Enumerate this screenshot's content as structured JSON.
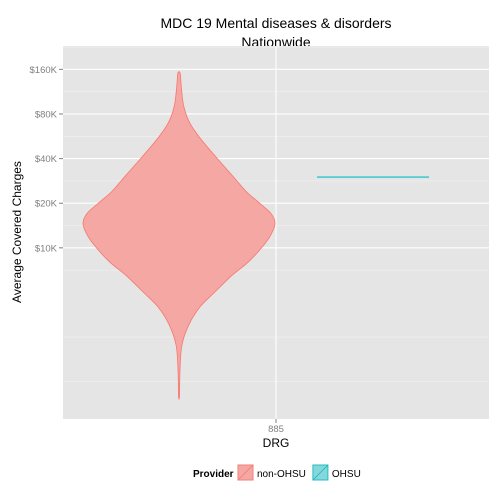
{
  "chart_data": {
    "type": "violin",
    "title": "MDC 19 Mental diseases & disorders",
    "subtitle": "Nationwide",
    "xlabel": "DRG",
    "ylabel": "Average Covered Charges",
    "categories": [
      "885"
    ],
    "y_scale": "log",
    "ylim": [
      700,
      230000
    ],
    "y_ticks": [
      {
        "value": 10000,
        "label": "$10K"
      },
      {
        "value": 20000,
        "label": "$20K"
      },
      {
        "value": 40000,
        "label": "$40K"
      },
      {
        "value": 80000,
        "label": "$80K"
      },
      {
        "value": 160000,
        "label": "$160K"
      }
    ],
    "series": [
      {
        "name": "non-OHSU",
        "type": "violin",
        "category": "885",
        "fill_color": "#f4a7a3",
        "line_color": "#f8766d",
        "min": 1000,
        "max": 150000,
        "mode": 15000,
        "density_profile": [
          {
            "y": 1000,
            "w": 0.005
          },
          {
            "y": 1500,
            "w": 0.01
          },
          {
            "y": 2200,
            "w": 0.03
          },
          {
            "y": 3000,
            "w": 0.1
          },
          {
            "y": 4000,
            "w": 0.22
          },
          {
            "y": 5000,
            "w": 0.37
          },
          {
            "y": 6500,
            "w": 0.55
          },
          {
            "y": 8000,
            "w": 0.72
          },
          {
            "y": 10000,
            "w": 0.86
          },
          {
            "y": 12000,
            "w": 0.95
          },
          {
            "y": 14500,
            "w": 1.0
          },
          {
            "y": 17000,
            "w": 0.96
          },
          {
            "y": 20000,
            "w": 0.84
          },
          {
            "y": 24000,
            "w": 0.7
          },
          {
            "y": 30000,
            "w": 0.57
          },
          {
            "y": 40000,
            "w": 0.4
          },
          {
            "y": 55000,
            "w": 0.22
          },
          {
            "y": 70000,
            "w": 0.11
          },
          {
            "y": 90000,
            "w": 0.05
          },
          {
            "y": 120000,
            "w": 0.025
          },
          {
            "y": 150000,
            "w": 0.012
          }
        ]
      },
      {
        "name": "OHSU",
        "type": "violin",
        "category": "885",
        "fill_color": "#86d6da",
        "line_color": "#00bfc4",
        "value": 30000
      }
    ],
    "legend": {
      "title": "Provider",
      "position": "bottom",
      "items": [
        {
          "label": "non-OHSU",
          "fill": "#f4a7a3",
          "stroke": "#f8766d"
        },
        {
          "label": "OHSU",
          "fill": "#86d6da",
          "stroke": "#00bfc4"
        }
      ]
    },
    "grid": true,
    "panel_background": "#e5e5e5"
  }
}
